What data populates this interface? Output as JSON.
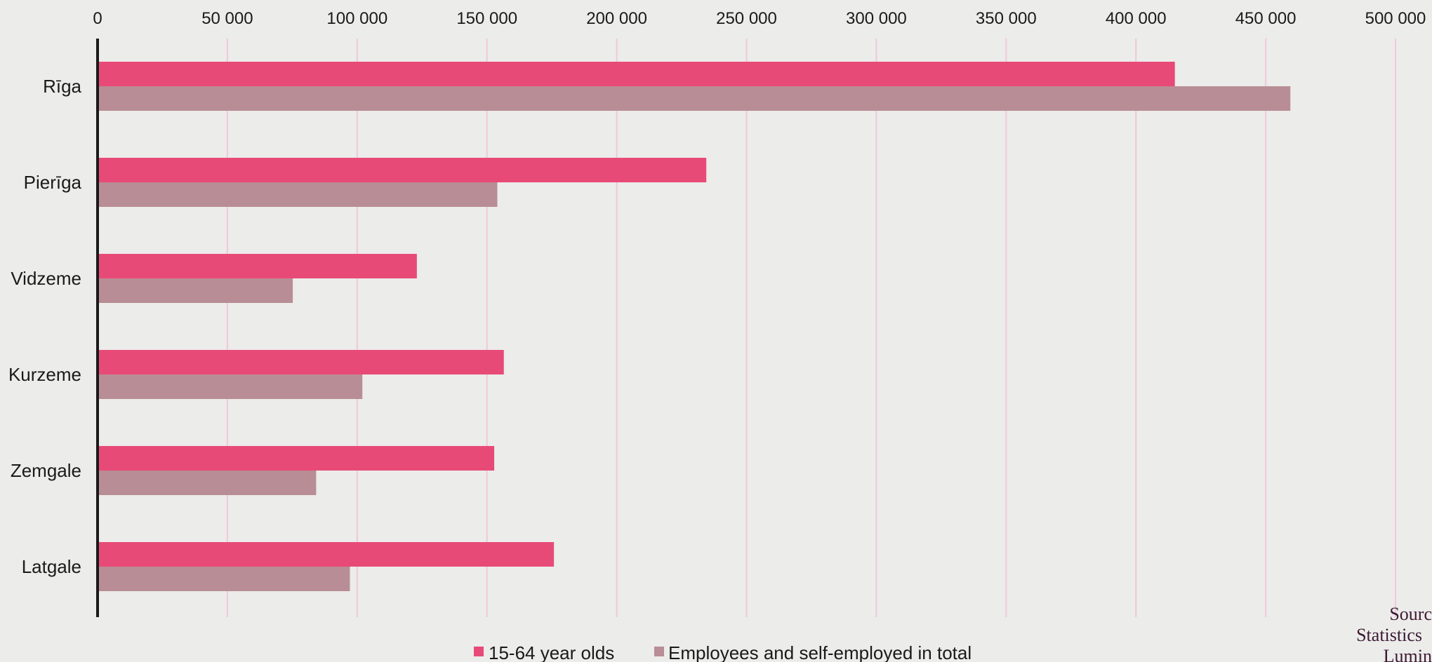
{
  "chart_data": {
    "type": "bar",
    "orientation": "horizontal",
    "categories": [
      "Rīga",
      "Pierīga",
      "Vidzeme",
      "Kurzeme",
      "Zemgale",
      "Latgale"
    ],
    "series": [
      {
        "name": "15-64 year olds",
        "color": "#e84a77",
        "values": [
          415000,
          234500,
          123000,
          156500,
          152800,
          175800
        ]
      },
      {
        "name": "Employees and self-employed in total",
        "color": "#b98d95",
        "values": [
          459500,
          154000,
          75200,
          102000,
          84200,
          97200
        ]
      }
    ],
    "xlim": [
      0,
      500000
    ],
    "xticks": [
      0,
      50000,
      100000,
      150000,
      200000,
      250000,
      300000,
      350000,
      400000,
      450000,
      500000
    ],
    "xtick_labels": [
      "0",
      "50 000",
      "100 000",
      "150 000",
      "200 000",
      "250 000",
      "300 000",
      "350 000",
      "400 000",
      "450 000",
      "500 000"
    ],
    "x_axis_position": "top",
    "grid": "vertical",
    "grid_color": "#f0c8dc",
    "legend_position": "bottom",
    "source_lines": [
      "Sourc",
      "Statistics",
      "Lumin"
    ]
  }
}
